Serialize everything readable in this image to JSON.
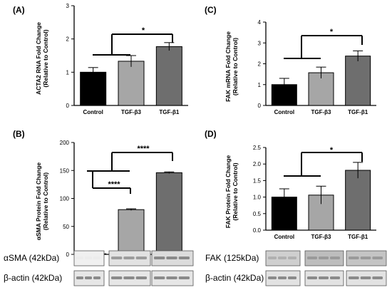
{
  "chart_data": [
    {
      "panel": "(A)",
      "type": "bar",
      "ylabel": [
        "ACTA2 RNA Fold Change",
        "(Relative to Control)"
      ],
      "categories": [
        "Control",
        "TGF-β3",
        "TGF-β1"
      ],
      "values": [
        1.0,
        1.33,
        1.77
      ],
      "errors": [
        0.14,
        0.17,
        0.12
      ],
      "colors": [
        "#000000",
        "#a6a6a6",
        "#6e6e6e"
      ],
      "ylim": [
        0,
        3
      ],
      "yticks": [
        "0",
        "1",
        "2",
        "3"
      ],
      "significance": [
        "*"
      ]
    },
    {
      "panel": "(B)",
      "type": "bar",
      "ylabel": [
        "αSMA Protein Fold Change",
        "(Relative to Control)"
      ],
      "categories": [
        "Control",
        "TGF-β3",
        "TGF-β1"
      ],
      "values": [
        1,
        80,
        146
      ],
      "errors": [
        0,
        1.5,
        1.5
      ],
      "colors": [
        "#000000",
        "#a6a6a6",
        "#6e6e6e"
      ],
      "ylim": [
        0,
        200
      ],
      "yticks": [
        "0",
        "50",
        "100",
        "150",
        "200"
      ],
      "significance": [
        "****",
        "****"
      ],
      "blots": [
        "αSMA (42kDa)",
        "β-actin (42kDa)"
      ]
    },
    {
      "panel": "(C)",
      "type": "bar",
      "ylabel": [
        "FAK mRNA Fold Change",
        "(Relative to Control)"
      ],
      "categories": [
        "Control",
        "TGF-β3",
        "TGF-β1"
      ],
      "values": [
        1.0,
        1.57,
        2.37
      ],
      "errors": [
        0.3,
        0.27,
        0.25
      ],
      "colors": [
        "#000000",
        "#a6a6a6",
        "#6e6e6e"
      ],
      "ylim": [
        0,
        4
      ],
      "yticks": [
        "0",
        "1",
        "2",
        "3",
        "4"
      ],
      "significance": [
        "*"
      ]
    },
    {
      "panel": "(D)",
      "type": "bar",
      "ylabel": [
        "FAK Protein Fold Change",
        "(Relative to Control)"
      ],
      "categories": [
        "Control",
        "TGF-β3",
        "TGF-β1"
      ],
      "values": [
        1.0,
        1.06,
        1.81
      ],
      "errors": [
        0.25,
        0.27,
        0.24
      ],
      "colors": [
        "#000000",
        "#a6a6a6",
        "#6e6e6e"
      ],
      "ylim": [
        0,
        2.5
      ],
      "yticks": [
        "0.0",
        "0.5",
        "1.0",
        "1.5",
        "2.0",
        "2.5"
      ],
      "significance": [
        "*"
      ],
      "blots": [
        "FAK (125kDa)",
        "β-actin (42kDa)"
      ]
    }
  ]
}
